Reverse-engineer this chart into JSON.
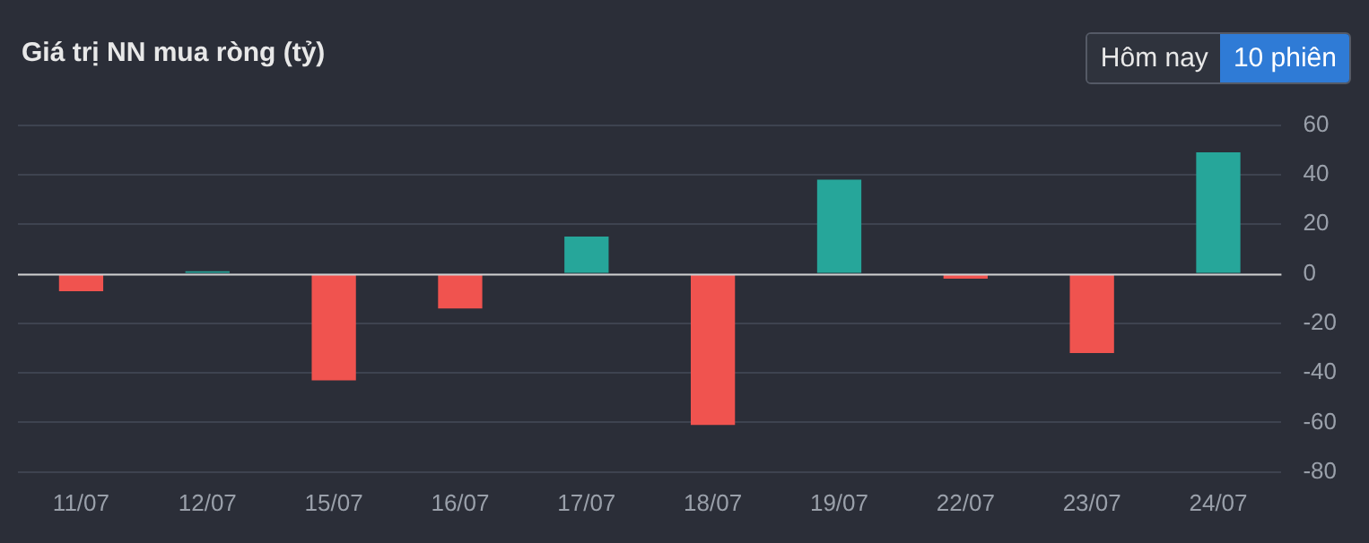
{
  "chart_data": {
    "type": "bar",
    "title": "Giá trị NN mua ròng (tỷ)",
    "categories": [
      "11/07",
      "12/07",
      "15/07",
      "16/07",
      "17/07",
      "18/07",
      "19/07",
      "22/07",
      "23/07",
      "24/07"
    ],
    "values": [
      -7,
      1,
      -43,
      -14,
      15,
      -61,
      38,
      -2,
      -32,
      49
    ],
    "colors": [
      "#f0534f",
      "#26a69a",
      "#f0534f",
      "#f0534f",
      "#26a69a",
      "#f0534f",
      "#26a69a",
      "#f0534f",
      "#f0534f",
      "#26a69a"
    ],
    "ylim": [
      -80,
      60
    ],
    "yticks": [
      -80,
      -60,
      -40,
      -20,
      0,
      20,
      40,
      60
    ],
    "grid": "y",
    "legend": false,
    "annotations": [
      "Hôm nay",
      "10 phiên"
    ]
  }
}
